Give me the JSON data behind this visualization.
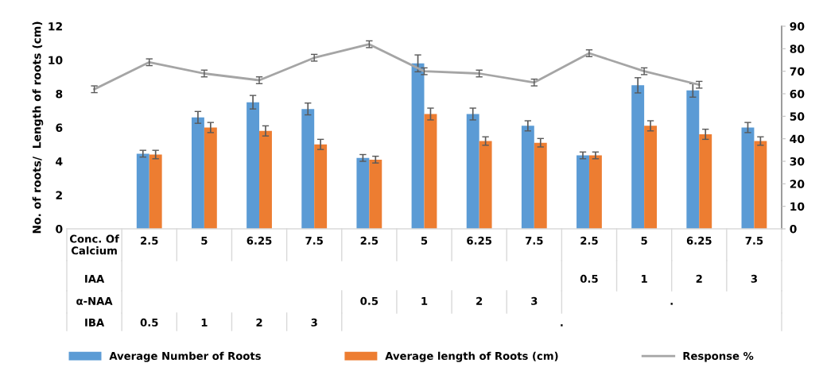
{
  "chart_data": {
    "type": "bar",
    "ylabel": "No. of roots/  Length of roots (cm)",
    "categories": [
      null,
      "2.5\n\n\n0.5",
      "5\n\n\n1",
      "6.25\n\n\n2",
      "7.5\n\n\n3",
      "2.5\n\n0.5\n",
      "5\n\n1\n",
      "6.25\n\n2\n",
      "7.5\n\n3\n",
      "2.5\n0.5\n\n",
      "5\n1\n\n",
      "6.25\n2\n\n",
      "7.5\n3\n\n"
    ],
    "series": [
      {
        "name": "Average Number of Roots",
        "color": "#5b9bd5",
        "values": [
          null,
          4.45,
          6.6,
          7.5,
          7.1,
          4.2,
          9.8,
          6.8,
          6.1,
          4.35,
          8.5,
          8.2,
          6.0
        ],
        "errors": [
          null,
          0.2,
          0.35,
          0.4,
          0.35,
          0.2,
          0.5,
          0.35,
          0.3,
          0.2,
          0.45,
          0.4,
          0.3
        ]
      },
      {
        "name": "Average length of Roots (cm)",
        "color": "#ed7d31",
        "values": [
          null,
          4.4,
          6.0,
          5.8,
          5.0,
          4.1,
          6.8,
          5.2,
          5.1,
          4.35,
          6.1,
          5.6,
          5.2
        ],
        "errors": [
          null,
          0.25,
          0.3,
          0.3,
          0.3,
          0.2,
          0.35,
          0.25,
          0.25,
          0.2,
          0.3,
          0.3,
          0.25
        ]
      },
      {
        "name": "Response %",
        "type": "line",
        "axis": "y2",
        "color": "#a5a5a5",
        "values": [
          62,
          74,
          69,
          66,
          76,
          82,
          70,
          69,
          65,
          78,
          70,
          64,
          null
        ],
        "errors": [
          1.5,
          1.5,
          1.5,
          1.5,
          1.5,
          1.5,
          1.5,
          1.5,
          1.5,
          1.5,
          1.5,
          1.5,
          null
        ]
      }
    ],
    "ylim": [
      0,
      12
    ],
    "yticks": [
      0,
      2,
      4,
      6,
      8,
      10,
      12
    ],
    "y2lim": [
      0,
      90
    ],
    "y2ticks": [
      0,
      10,
      20,
      30,
      40,
      50,
      60,
      70,
      80,
      90
    ],
    "annotations": [
      "Conc. Of\nCalcium",
      "IAA",
      "α-NAA",
      "IBA",
      ".",
      "."
    ],
    "legend": "bottom",
    "grid": false
  }
}
